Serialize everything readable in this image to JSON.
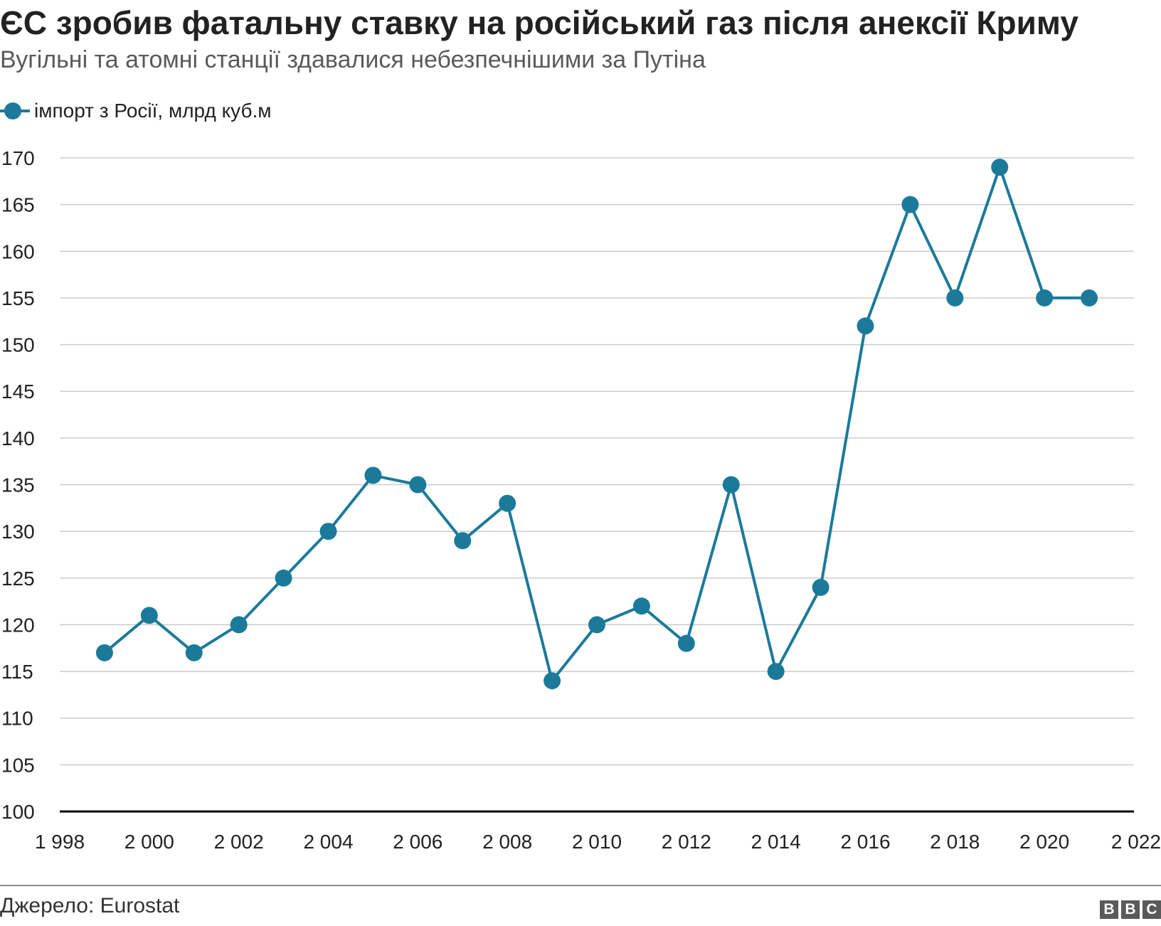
{
  "header": {
    "title": "ЄС зробив фатальну ставку на російський газ після анексії Криму",
    "subtitle": "Вугільні та атомні станції здавалися небезпечнішими за Путіна"
  },
  "legend": {
    "label": "імпорт з Росії, млрд куб.м"
  },
  "footer": {
    "source": "Джерело: Eurostat",
    "logo_letters": [
      "B",
      "B",
      "C"
    ]
  },
  "colors": {
    "series": "#1b7a9a",
    "grid": "#cccccc",
    "axis": "#000000"
  },
  "chart_data": {
    "type": "line",
    "title": "ЄС зробив фатальну ставку на російський газ після анексії Криму",
    "subtitle": "Вугільні та атомні станції здавалися небезпечнішими за Путіна",
    "xlabel": "",
    "ylabel": "",
    "xlim": [
      1998,
      2022
    ],
    "ylim": [
      100,
      170
    ],
    "xticks": [
      1998,
      2000,
      2002,
      2004,
      2006,
      2008,
      2010,
      2012,
      2014,
      2016,
      2018,
      2020,
      2022
    ],
    "xtick_labels": [
      "1 998",
      "2 000",
      "2 002",
      "2 004",
      "2 006",
      "2 008",
      "2 010",
      "2 012",
      "2 014",
      "2 016",
      "2 018",
      "2 020",
      "2 022"
    ],
    "yticks": [
      100,
      105,
      110,
      115,
      120,
      125,
      130,
      135,
      140,
      145,
      150,
      155,
      160,
      165,
      170
    ],
    "grid": "horizontal",
    "legend_position": "top-left",
    "series": [
      {
        "name": "імпорт з Росії, млрд куб.м",
        "x": [
          1999,
          2000,
          2001,
          2002,
          2003,
          2004,
          2005,
          2006,
          2007,
          2008,
          2009,
          2010,
          2011,
          2012,
          2013,
          2014,
          2015,
          2016,
          2017,
          2018,
          2019,
          2020,
          2021
        ],
        "values": [
          117,
          121,
          117,
          120,
          125,
          130,
          136,
          135,
          129,
          133,
          114,
          120,
          122,
          118,
          135,
          115,
          124,
          152,
          165,
          155,
          169,
          155,
          155
        ]
      }
    ]
  }
}
